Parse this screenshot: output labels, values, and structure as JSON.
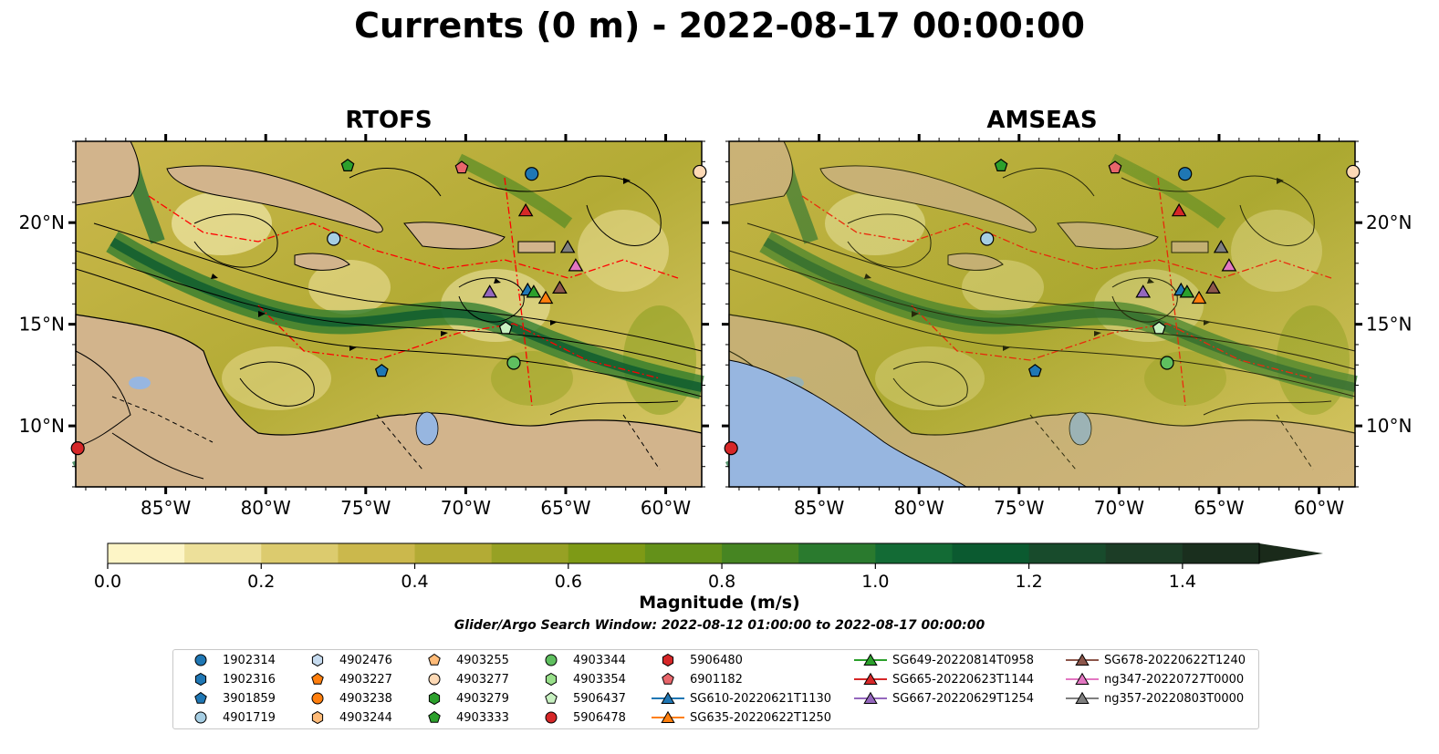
{
  "title": "Currents (0 m) - 2022-08-17 00:00:00",
  "chart_data": [
    {
      "type": "heatmap",
      "title": "RTOFS",
      "x_tick_labels": [
        "85°W",
        "80°W",
        "75°W",
        "70°W",
        "65°W",
        "60°W"
      ],
      "y_tick_labels": [
        "10°N",
        "15°N",
        "20°N"
      ],
      "x_ticks": [
        -85,
        -80,
        -75,
        -70,
        -65,
        -60
      ],
      "y_ticks": [
        10,
        15,
        20
      ],
      "xlim": [
        -89.5,
        -58.2
      ],
      "ylim": [
        7,
        24
      ],
      "markers": [
        {
          "id": "1902314",
          "lon": -66.7,
          "lat": 22.4
        },
        {
          "id": "4901719",
          "lon": -76.6,
          "lat": 19.2
        },
        {
          "id": "4903333",
          "lon": -75.9,
          "lat": 22.8
        },
        {
          "id": "6901182",
          "lon": -70.2,
          "lat": 22.7
        },
        {
          "id": "3901859",
          "lon": -74.2,
          "lat": 12.7
        },
        {
          "id": "5906437",
          "lon": -68.0,
          "lat": 14.8
        },
        {
          "id": "4903344",
          "lon": -67.6,
          "lat": 13.1
        },
        {
          "id": "5906478",
          "lon": -89.4,
          "lat": 8.9
        },
        {
          "id": "4903277",
          "lon": -58.3,
          "lat": 22.5
        },
        {
          "id": "SG665-20220623T1144",
          "lon": -67.0,
          "lat": 20.6
        },
        {
          "id": "ng357-20220803T0000",
          "lon": -64.9,
          "lat": 18.8
        },
        {
          "id": "ng347-20220727T0000",
          "lon": -64.5,
          "lat": 17.9
        },
        {
          "id": "SG667-20220629T1254",
          "lon": -68.8,
          "lat": 16.6
        },
        {
          "id": "SG610-20220621T1130",
          "lon": -66.9,
          "lat": 16.7
        },
        {
          "id": "SG649-20220814T0958",
          "lon": -66.6,
          "lat": 16.6
        },
        {
          "id": "SG635-20220622T1250",
          "lon": -66.0,
          "lat": 16.3
        },
        {
          "id": "SG678-20220622T1240",
          "lon": -65.3,
          "lat": 16.8
        }
      ]
    },
    {
      "type": "heatmap",
      "title": "AMSEAS",
      "x_tick_labels": [
        "85°W",
        "80°W",
        "75°W",
        "70°W",
        "65°W",
        "60°W"
      ],
      "y_tick_labels": [
        "10°N",
        "15°N",
        "20°N"
      ],
      "x_ticks": [
        -85,
        -80,
        -75,
        -70,
        -65,
        -60
      ],
      "y_ticks": [
        10,
        15,
        20
      ],
      "xlim": [
        -89.5,
        -58.2
      ],
      "ylim": [
        7,
        24
      ],
      "markers": [
        {
          "id": "1902314",
          "lon": -66.7,
          "lat": 22.4
        },
        {
          "id": "4901719",
          "lon": -76.6,
          "lat": 19.2
        },
        {
          "id": "4903333",
          "lon": -75.9,
          "lat": 22.8
        },
        {
          "id": "6901182",
          "lon": -70.2,
          "lat": 22.7
        },
        {
          "id": "3901859",
          "lon": -74.2,
          "lat": 12.7
        },
        {
          "id": "5906437",
          "lon": -68.0,
          "lat": 14.8
        },
        {
          "id": "4903344",
          "lon": -67.6,
          "lat": 13.1
        },
        {
          "id": "5906478",
          "lon": -89.4,
          "lat": 8.9
        },
        {
          "id": "4903277",
          "lon": -58.3,
          "lat": 22.5
        },
        {
          "id": "SG665-20220623T1144",
          "lon": -67.0,
          "lat": 20.6
        },
        {
          "id": "ng357-20220803T0000",
          "lon": -64.9,
          "lat": 18.8
        },
        {
          "id": "ng347-20220727T0000",
          "lon": -64.5,
          "lat": 17.9
        },
        {
          "id": "SG667-20220629T1254",
          "lon": -68.8,
          "lat": 16.6
        },
        {
          "id": "SG610-20220621T1130",
          "lon": -66.9,
          "lat": 16.7
        },
        {
          "id": "SG649-20220814T0958",
          "lon": -66.6,
          "lat": 16.6
        },
        {
          "id": "SG635-20220622T1250",
          "lon": -66.0,
          "lat": 16.3
        },
        {
          "id": "SG678-20220622T1240",
          "lon": -65.3,
          "lat": 16.8
        }
      ]
    }
  ],
  "colorbar": {
    "label": "Magnitude (m/s)",
    "range": [
      0,
      1.5
    ],
    "extend": "max",
    "ticks": [
      0.0,
      0.2,
      0.4,
      0.6,
      0.8,
      1.0,
      1.2,
      1.4
    ],
    "tick_labels": [
      "0.0",
      "0.2",
      "0.4",
      "0.6",
      "0.8",
      "1.0",
      "1.2",
      "1.4"
    ],
    "colors": [
      "#fdf5c6",
      "#ede09a",
      "#dccb6e",
      "#cbb84c",
      "#b3ab35",
      "#97a124",
      "#7e9a16",
      "#64911a",
      "#468522",
      "#2a7a2e",
      "#136b35",
      "#0b5a30",
      "#184b2c",
      "#1c3d26",
      "#1a2f1e"
    ]
  },
  "search_window": "Glider/Argo Search Window: 2022-08-12 01:00:00 to 2022-08-17 00:00:00",
  "legend": [
    {
      "label": "1902314",
      "shape": "circle",
      "color": "#1f77b4"
    },
    {
      "label": "1902316",
      "shape": "hexagon",
      "color": "#1f77b4"
    },
    {
      "label": "3901859",
      "shape": "pentagon",
      "color": "#1f77b4"
    },
    {
      "label": "4901719",
      "shape": "circle",
      "color": "#a6cee3"
    },
    {
      "label": "4902476",
      "shape": "hexagon",
      "color": "#c6dbef"
    },
    {
      "label": "4903227",
      "shape": "pentagon",
      "color": "#ff7f0e"
    },
    {
      "label": "4903238",
      "shape": "circle",
      "color": "#ff7f0e"
    },
    {
      "label": "4903244",
      "shape": "hexagon",
      "color": "#ffbb78"
    },
    {
      "label": "4903255",
      "shape": "pentagon",
      "color": "#ffbb78"
    },
    {
      "label": "4903277",
      "shape": "circle",
      "color": "#fdd9b5"
    },
    {
      "label": "4903279",
      "shape": "hexagon",
      "color": "#2ca02c"
    },
    {
      "label": "4903333",
      "shape": "pentagon",
      "color": "#2ca02c"
    },
    {
      "label": "4903344",
      "shape": "circle",
      "color": "#5fbf5f"
    },
    {
      "label": "4903354",
      "shape": "hexagon",
      "color": "#98df8a"
    },
    {
      "label": "5906437",
      "shape": "pentagon",
      "color": "#c7f0c0"
    },
    {
      "label": "5906478",
      "shape": "circle",
      "color": "#d62728"
    },
    {
      "label": "5906480",
      "shape": "hexagon",
      "color": "#d62728"
    },
    {
      "label": "6901182",
      "shape": "pentagon",
      "color": "#e8666b"
    },
    {
      "label": "SG610-20220621T1130",
      "shape": "triangle-line",
      "color": "#1f77b4"
    },
    {
      "label": "SG635-20220622T1250",
      "shape": "triangle-line",
      "color": "#ff7f0e"
    },
    {
      "label": "SG649-20220814T0958",
      "shape": "triangle-line",
      "color": "#2ca02c"
    },
    {
      "label": "SG665-20220623T1144",
      "shape": "triangle-line",
      "color": "#d62728"
    },
    {
      "label": "SG667-20220629T1254",
      "shape": "triangle-line",
      "color": "#9467bd"
    },
    {
      "label": "SG678-20220622T1240",
      "shape": "triangle-line",
      "color": "#8c564b"
    },
    {
      "label": "ng347-20220727T0000",
      "shape": "triangle-line",
      "color": "#e377c2"
    },
    {
      "label": "ng357-20220803T0000",
      "shape": "triangle-line",
      "color": "#7f7f7f"
    }
  ]
}
